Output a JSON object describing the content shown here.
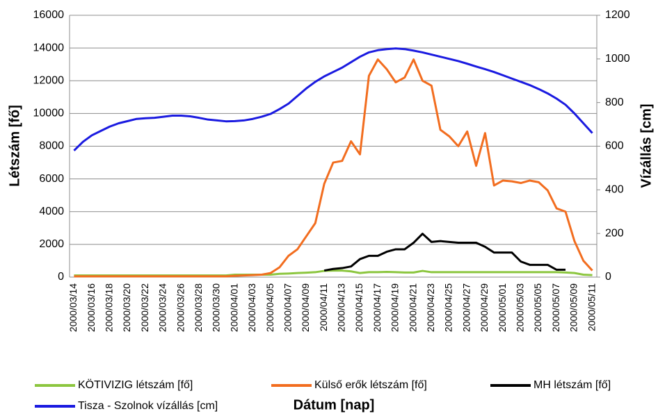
{
  "chart_data": {
    "type": "line",
    "x_label": "Dátum [nap]",
    "y_label": "Létszám [fő]",
    "y2_label": "Vízállás [cm]",
    "categories": [
      "2000/03/14",
      null,
      "2000/03/16",
      null,
      "2000/03/18",
      null,
      "2000/03/20",
      null,
      "2000/03/22",
      null,
      "2000/03/24",
      null,
      "2000/03/26",
      null,
      "2000/03/28",
      null,
      "2000/03/30",
      null,
      "2000/04/01",
      null,
      "2000/04/03",
      null,
      "2000/04/05",
      null,
      "2000/04/07",
      null,
      "2000/04/09",
      null,
      "2000/04/11",
      null,
      "2000/04/13",
      null,
      "2000/04/15",
      null,
      "2000/04/17",
      null,
      "2000/04/19",
      null,
      "2000/04/21",
      null,
      "2000/04/23",
      null,
      "2000/04/25",
      null,
      "2000/04/27",
      null,
      "2000/04/29",
      null,
      "2000/05/01",
      null,
      "2000/05/03",
      null,
      "2000/05/05",
      null,
      "2000/05/07",
      null,
      "2000/05/09",
      null,
      "2000/05/11"
    ],
    "series": [
      {
        "name": "KÖTIVIZIG létszám [fő]",
        "color": "#8cc63f",
        "values": [
          100,
          100,
          100,
          100,
          100,
          100,
          100,
          100,
          100,
          100,
          100,
          100,
          100,
          100,
          100,
          100,
          100,
          100,
          150,
          150,
          150,
          150,
          150,
          200,
          220,
          250,
          270,
          300,
          380,
          400,
          400,
          350,
          250,
          300,
          300,
          320,
          300,
          280,
          280,
          380,
          300,
          300,
          300,
          300,
          300,
          300,
          300,
          300,
          300,
          300,
          300,
          300,
          300,
          300,
          300,
          280,
          250,
          150,
          120
        ]
      },
      {
        "name": "Külső erők létszám [fő]",
        "color": "#f26d1f",
        "values": [
          50,
          50,
          50,
          50,
          50,
          50,
          50,
          50,
          50,
          50,
          50,
          50,
          50,
          50,
          50,
          50,
          50,
          50,
          80,
          100,
          120,
          150,
          250,
          600,
          1300,
          1700,
          2500,
          3300,
          5700,
          7000,
          7100,
          8300,
          7500,
          12300,
          13300,
          12700,
          11900,
          12200,
          13300,
          12000,
          11700,
          9000,
          8600,
          8000,
          8900,
          6800,
          8800,
          5600,
          5900,
          5850,
          5750,
          5900,
          5800,
          5300,
          4200,
          4000,
          2200,
          1000,
          400
        ]
      },
      {
        "name": "MH létszám [fő]",
        "color": "#000000",
        "values": [
          null,
          null,
          null,
          null,
          null,
          null,
          null,
          null,
          null,
          null,
          null,
          null,
          null,
          null,
          null,
          null,
          null,
          null,
          null,
          null,
          null,
          null,
          null,
          null,
          null,
          null,
          null,
          null,
          400,
          500,
          550,
          650,
          1100,
          1300,
          1300,
          1550,
          1700,
          1700,
          2100,
          2650,
          2150,
          2200,
          2150,
          2100,
          2100,
          2100,
          1850,
          1500,
          1500,
          1500,
          950,
          750,
          750,
          750,
          450,
          450,
          null,
          null,
          null
        ]
      },
      {
        "name": "Tisza - Szolnok vízállás [cm]",
        "color": "#1a1ae0",
        "axis": "y2",
        "values": [
          580,
          620,
          650,
          670,
          690,
          705,
          715,
          725,
          728,
          730,
          735,
          740,
          740,
          737,
          730,
          722,
          718,
          714,
          715,
          718,
          725,
          735,
          748,
          770,
          795,
          830,
          865,
          895,
          920,
          940,
          960,
          985,
          1010,
          1030,
          1040,
          1045,
          1048,
          1045,
          1038,
          1030,
          1020,
          1010,
          1000,
          990,
          978,
          965,
          953,
          940,
          925,
          910,
          895,
          880,
          862,
          842,
          818,
          790,
          750,
          705,
          660
        ]
      }
    ],
    "ylim": [
      0,
      16000
    ],
    "yticks": [
      0,
      2000,
      4000,
      6000,
      8000,
      10000,
      12000,
      14000,
      16000
    ],
    "y2lim": [
      0,
      1200
    ],
    "y2ticks": [
      0,
      200,
      400,
      600,
      800,
      1000,
      1200
    ],
    "grid": true,
    "legend": "bottom"
  }
}
